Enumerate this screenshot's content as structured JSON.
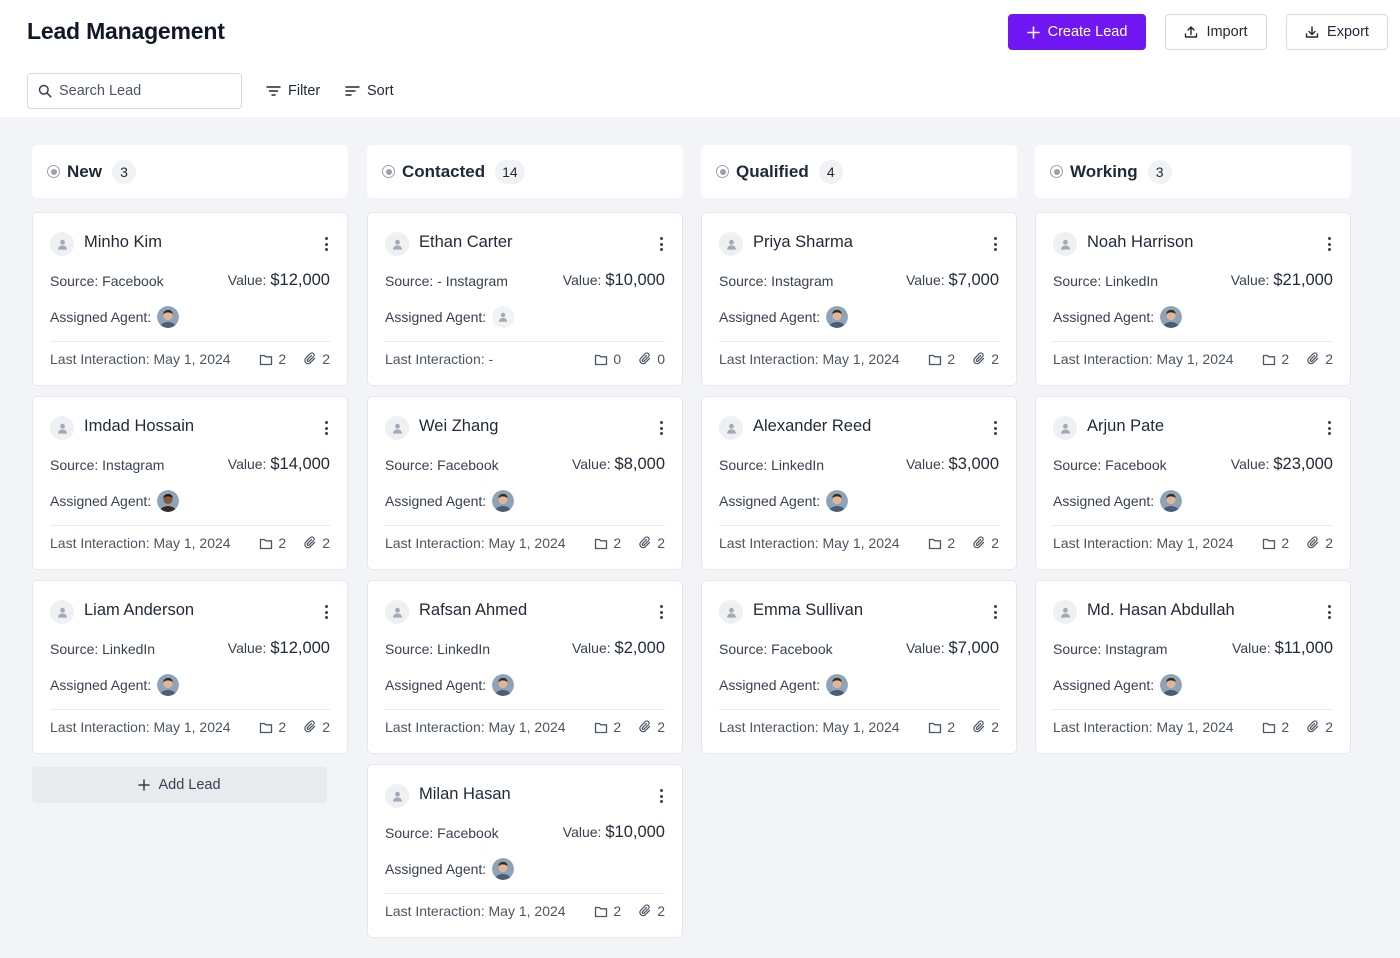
{
  "header": {
    "title": "Lead Management",
    "create_label": "Create Lead",
    "import_label": "Import",
    "export_label": "Export"
  },
  "toolbar": {
    "search_placeholder": "Search Lead",
    "filter_label": "Filter",
    "sort_label": "Sort"
  },
  "labels": {
    "source_prefix": "Source:",
    "value_prefix": "Value:",
    "assigned_agent": "Assigned Agent:",
    "last_interaction": "Last Interaction:"
  },
  "add_lead_label": "Add Lead",
  "colors": {
    "accent": "#6f16f2",
    "page_bg": "#f3f4f7"
  },
  "columns": [
    {
      "title": "New",
      "count": "3",
      "cards": [
        {
          "name": "Minho Kim",
          "source": "Facebook",
          "value": "$12,000",
          "agent": "photo",
          "last": "May 1, 2024",
          "notes": "2",
          "attachments": "2"
        },
        {
          "name": "Imdad Hossain",
          "source": "Instagram",
          "value": "$14,000",
          "agent": "photo-dark",
          "last": "May 1, 2024",
          "notes": "2",
          "attachments": "2"
        },
        {
          "name": "Liam Anderson",
          "source": "LinkedIn",
          "value": "$12,000",
          "agent": "photo",
          "last": "May 1, 2024",
          "notes": "2",
          "attachments": "2"
        }
      ]
    },
    {
      "title": "Contacted",
      "count": "14",
      "cards": [
        {
          "name": "Ethan Carter",
          "source": "- Instagram",
          "value": "$10,000",
          "agent": "none",
          "last": "-",
          "notes": "0",
          "attachments": "0"
        },
        {
          "name": "Wei Zhang",
          "source": "Facebook",
          "value": "$8,000",
          "agent": "photo",
          "last": "May 1, 2024",
          "notes": "2",
          "attachments": "2"
        },
        {
          "name": "Rafsan Ahmed",
          "source": "LinkedIn",
          "value": "$2,000",
          "agent": "photo",
          "last": "May 1, 2024",
          "notes": "2",
          "attachments": "2"
        },
        {
          "name": "Milan Hasan",
          "source": "Facebook",
          "value": "$10,000",
          "agent": "photo",
          "last": "May 1, 2024",
          "notes": "2",
          "attachments": "2"
        }
      ]
    },
    {
      "title": "Qualified",
      "count": "4",
      "cards": [
        {
          "name": "Priya Sharma",
          "source": "Instagram",
          "value": "$7,000",
          "agent": "photo",
          "last": "May 1, 2024",
          "notes": "2",
          "attachments": "2"
        },
        {
          "name": "Alexander Reed",
          "source": "LinkedIn",
          "value": "$3,000",
          "agent": "photo",
          "last": "May 1, 2024",
          "notes": "2",
          "attachments": "2"
        },
        {
          "name": "Emma Sullivan",
          "source": "Facebook",
          "value": "$7,000",
          "agent": "photo",
          "last": "May 1, 2024",
          "notes": "2",
          "attachments": "2"
        }
      ]
    },
    {
      "title": "Working",
      "count": "3",
      "cards": [
        {
          "name": "Noah Harrison",
          "source": "LinkedIn",
          "value": "$21,000",
          "agent": "photo",
          "last": "May 1, 2024",
          "notes": "2",
          "attachments": "2"
        },
        {
          "name": "Arjun Pate",
          "source": "Facebook",
          "value": "$23,000",
          "agent": "photo",
          "last": "May 1, 2024",
          "notes": "2",
          "attachments": "2"
        },
        {
          "name": "Md. Hasan Abdullah",
          "source": "Instagram",
          "value": "$11,000",
          "agent": "photo",
          "last": "May 1, 2024",
          "notes": "2",
          "attachments": "2"
        }
      ]
    }
  ]
}
